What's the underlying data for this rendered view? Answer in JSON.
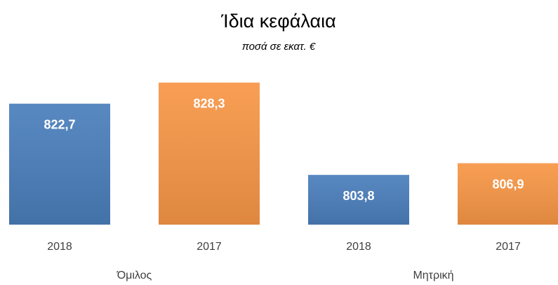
{
  "chart_data": {
    "type": "bar",
    "title": "Ίδια κεφάλαια",
    "subtitle": "ποσά σε εκατ. €",
    "categories": [
      "2018",
      "2017",
      "2018",
      "2017"
    ],
    "groups": [
      "Όμιλος",
      "Μητρική"
    ],
    "values": [
      822.7,
      828.3,
      803.8,
      806.9
    ],
    "value_labels": [
      "822,7",
      "828,3",
      "803,8",
      "806,9"
    ],
    "colors": [
      "#4a7ebb",
      "#f79646",
      "#4a7ebb",
      "#f79646"
    ],
    "ylim": [
      790.6,
      835.5
    ]
  }
}
